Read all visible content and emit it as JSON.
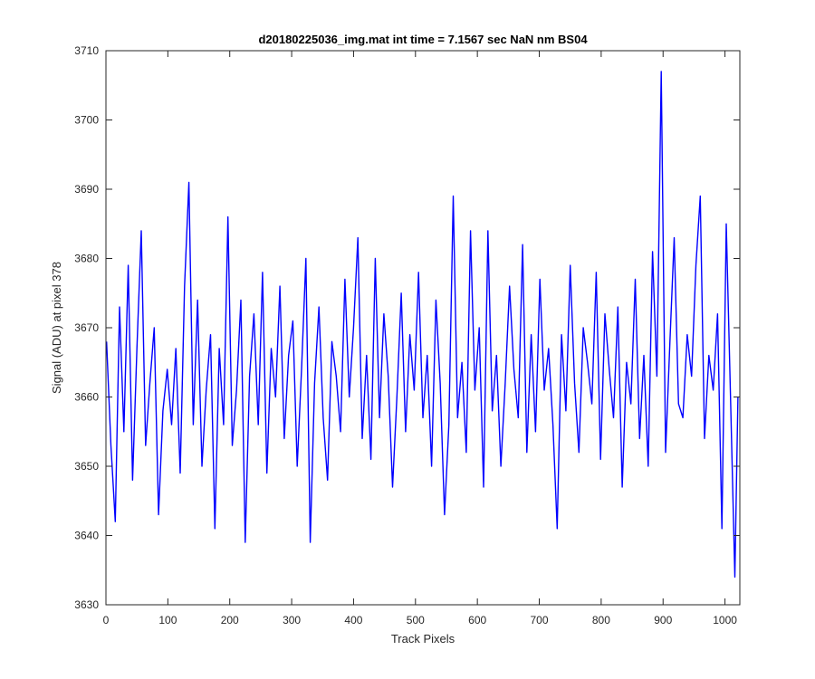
{
  "chart_data": {
    "type": "line",
    "title": "d20180225036_img.mat int time = 7.1567 sec  NaN nm BS04",
    "xlabel": "Track Pixels",
    "ylabel": "Signal (ADU) at pixel 378",
    "xlim": [
      0,
      1024
    ],
    "ylim": [
      3630,
      3710
    ],
    "xticks": [
      0,
      100,
      200,
      300,
      400,
      500,
      600,
      700,
      800,
      900,
      1000
    ],
    "yticks": [
      3630,
      3640,
      3650,
      3660,
      3670,
      3680,
      3690,
      3700,
      3710
    ],
    "grid": false,
    "line_color": "#0000ff",
    "series": [
      {
        "x": [
          1,
          8,
          15,
          22,
          29,
          36,
          43,
          50,
          57,
          64,
          71,
          78,
          85,
          92,
          99,
          106,
          113,
          120,
          127,
          134,
          141,
          148,
          155,
          162,
          169,
          176,
          183,
          190,
          197,
          204,
          211,
          218,
          225,
          232,
          239,
          246,
          253,
          260,
          267,
          274,
          281,
          288,
          295,
          302,
          309,
          316,
          323,
          330,
          337,
          344,
          351,
          358,
          365,
          372,
          379,
          386,
          393,
          400,
          407,
          414,
          421,
          428,
          435,
          442,
          449,
          456,
          463,
          470,
          477,
          484,
          491,
          498,
          505,
          512,
          519,
          526,
          533,
          540,
          547,
          554,
          561,
          568,
          575,
          582,
          589,
          596,
          603,
          610,
          617,
          624,
          631,
          638,
          645,
          652,
          659,
          666,
          673,
          680,
          687,
          694,
          701,
          708,
          715,
          722,
          729,
          736,
          743,
          750,
          757,
          764,
          771,
          778,
          785,
          792,
          799,
          806,
          813,
          820,
          827,
          834,
          841,
          848,
          855,
          862,
          869,
          876,
          883,
          890,
          897,
          904,
          911,
          918,
          925,
          932,
          939,
          946,
          953,
          960,
          967,
          974,
          981,
          988,
          995,
          1002,
          1009,
          1016,
          1021
        ],
        "y": [
          3668,
          3653,
          3642,
          3673,
          3655,
          3679,
          3648,
          3667,
          3684,
          3653,
          3662,
          3670,
          3643,
          3658,
          3664,
          3656,
          3667,
          3649,
          3676,
          3691,
          3656,
          3674,
          3650,
          3661,
          3669,
          3641,
          3667,
          3656,
          3686,
          3653,
          3661,
          3674,
          3639,
          3663,
          3672,
          3656,
          3678,
          3649,
          3667,
          3660,
          3676,
          3654,
          3666,
          3671,
          3650,
          3664,
          3680,
          3639,
          3662,
          3673,
          3657,
          3648,
          3668,
          3663,
          3655,
          3677,
          3660,
          3670,
          3683,
          3654,
          3666,
          3651,
          3680,
          3657,
          3672,
          3663,
          3647,
          3660,
          3675,
          3655,
          3669,
          3661,
          3678,
          3657,
          3666,
          3650,
          3674,
          3662,
          3643,
          3656,
          3689,
          3657,
          3665,
          3652,
          3684,
          3661,
          3670,
          3647,
          3684,
          3658,
          3666,
          3650,
          3662,
          3676,
          3664,
          3657,
          3682,
          3652,
          3669,
          3655,
          3677,
          3661,
          3667,
          3656,
          3641,
          3669,
          3658,
          3679,
          3662,
          3652,
          3670,
          3665,
          3659,
          3678,
          3651,
          3672,
          3664,
          3657,
          3673,
          3647,
          3665,
          3659,
          3677,
          3654,
          3666,
          3650,
          3681,
          3663,
          3707,
          3652,
          3668,
          3683,
          3659,
          3657,
          3669,
          3663,
          3679,
          3689,
          3654,
          3666,
          3661,
          3672,
          3641,
          3685,
          3660,
          3634,
          3660
        ]
      }
    ]
  }
}
